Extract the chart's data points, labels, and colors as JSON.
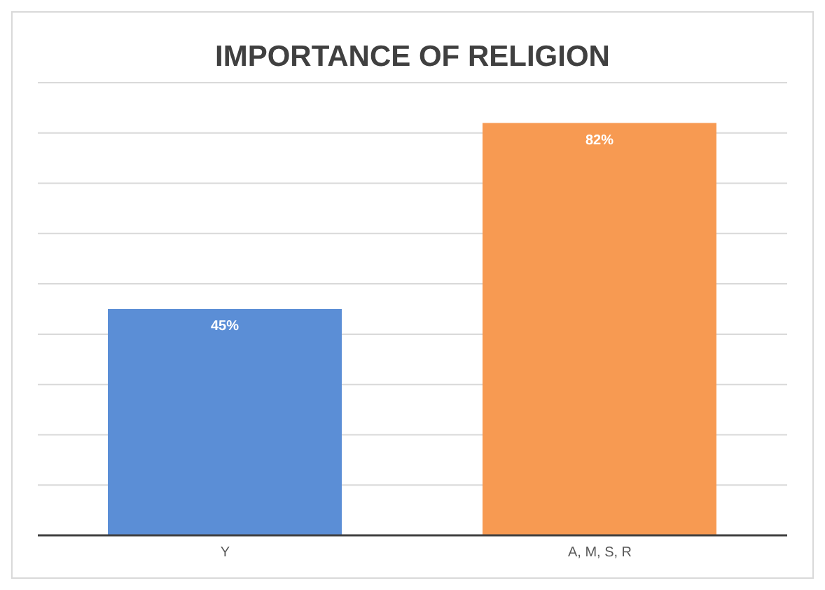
{
  "chart_data": {
    "type": "bar",
    "title": "IMPORTANCE OF RELIGION",
    "categories": [
      "Y",
      "A, M, S, R"
    ],
    "values": [
      45,
      82
    ],
    "colors": [
      "#5b8ed6",
      "#f79a52"
    ],
    "value_labels": [
      "45%",
      "82%"
    ],
    "ylim": [
      0,
      90
    ],
    "grid": "y",
    "tick_labels": "x"
  }
}
